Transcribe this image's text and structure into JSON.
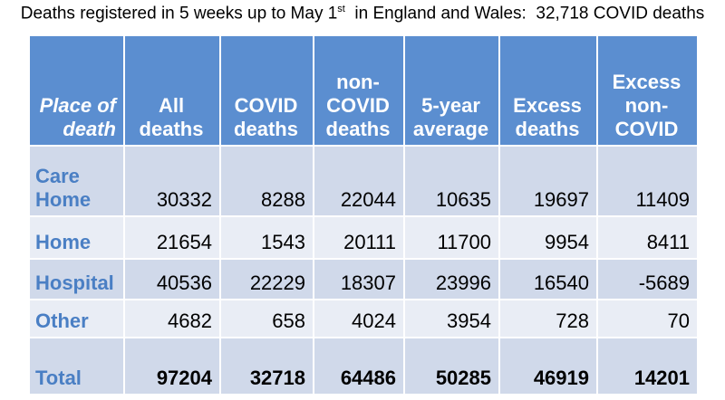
{
  "title": {
    "before": "Deaths registered in 5 weeks up to May 1",
    "sup": "st",
    "after": "  in England and Wales:  32,718 COVID deaths"
  },
  "table": {
    "header": [
      [
        "Place of",
        "death"
      ],
      [
        "All",
        "deaths"
      ],
      [
        "COVID",
        "deaths"
      ],
      [
        "non-",
        "COVID",
        "deaths"
      ],
      [
        "5-year",
        "average"
      ],
      [
        "Excess",
        "deaths"
      ],
      [
        "Excess",
        "non-",
        "COVID"
      ]
    ],
    "rows": [
      [
        "Care Home",
        30332,
        8288,
        22044,
        10635,
        19697,
        11409
      ],
      [
        "Home",
        21654,
        1543,
        20111,
        11700,
        9954,
        8411
      ],
      [
        "Hospital",
        40536,
        22229,
        18307,
        23996,
        16540,
        -5689
      ],
      [
        "Other",
        4682,
        658,
        4024,
        3954,
        728,
        70
      ],
      [
        "Total",
        97204,
        32718,
        64486,
        50285,
        46919,
        14201
      ]
    ]
  }
}
